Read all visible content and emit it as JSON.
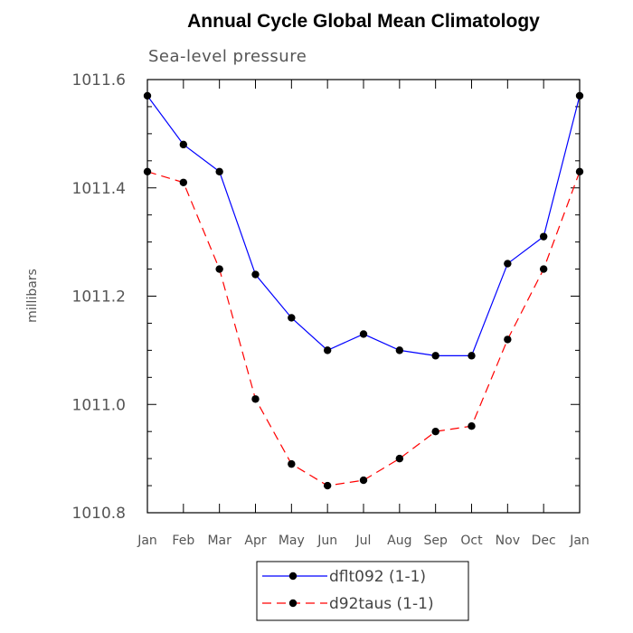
{
  "chart_data": {
    "type": "line",
    "title": "Annual Cycle Global Mean Climatology",
    "subtitle": "Sea-level pressure",
    "ylabel": "millibars",
    "xlabel": "",
    "categories": [
      "Jan",
      "Feb",
      "Mar",
      "Apr",
      "May",
      "Jun",
      "Jul",
      "Aug",
      "Sep",
      "Oct",
      "Nov",
      "Dec",
      "Jan"
    ],
    "ylim": [
      1010.8,
      1011.6
    ],
    "yticks": [
      "1010.8",
      "1011.0",
      "1011.2",
      "1011.4",
      "1011.6"
    ],
    "series": [
      {
        "name": "dflt092 (1-1)",
        "color": "#0000ff",
        "dash": "solid",
        "values": [
          1011.57,
          1011.48,
          1011.43,
          1011.24,
          1011.16,
          1011.1,
          1011.13,
          1011.1,
          1011.09,
          1011.09,
          1011.26,
          1011.31,
          1011.57
        ]
      },
      {
        "name": "d92taus (1-1)",
        "color": "#ff0000",
        "dash": "dashed",
        "values": [
          1011.43,
          1011.41,
          1011.25,
          1011.01,
          1010.89,
          1010.85,
          1010.86,
          1010.9,
          1010.95,
          1010.96,
          1011.12,
          1011.25,
          1011.43
        ]
      }
    ],
    "grid": false,
    "legend_position": "bottom"
  }
}
